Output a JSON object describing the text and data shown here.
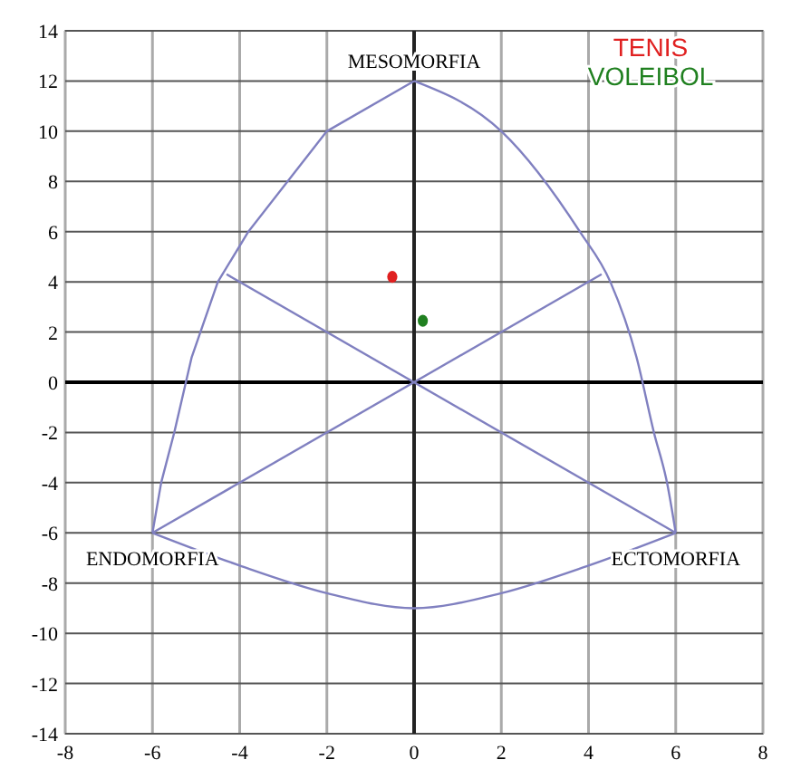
{
  "chart_data": {
    "type": "scatter",
    "xlim": [
      -8,
      8
    ],
    "ylim": [
      -14,
      14
    ],
    "xticks": [
      -8,
      -6,
      -4,
      -2,
      0,
      2,
      4,
      6,
      8
    ],
    "yticks": [
      -14,
      -12,
      -10,
      -8,
      -6,
      -4,
      -2,
      0,
      2,
      4,
      6,
      8,
      10,
      12,
      14
    ],
    "grid": true,
    "legend": "top right",
    "annotations": [
      {
        "text": "MESOMORFIA",
        "x": 0,
        "y": 12
      },
      {
        "text": "ENDOMORFIA",
        "x": -6,
        "y": -6
      },
      {
        "text": "ECTOMORFIA",
        "x": 6,
        "y": -6
      }
    ],
    "series": [
      {
        "type": "line",
        "color": "#8080c0",
        "x": [
          0,
          -2,
          -3.8,
          -4.5,
          -5.1,
          -5.5,
          -5.8,
          -6
        ],
        "values": [
          12,
          10,
          6,
          4,
          1,
          -2,
          -4,
          -6
        ]
      },
      {
        "type": "line",
        "color": "#8080c0",
        "x": [
          0,
          2,
          3.8,
          4.5,
          5.1,
          5.5,
          5.8,
          6
        ],
        "values": [
          12,
          10,
          6,
          4,
          1,
          -2,
          -4,
          -6
        ]
      },
      {
        "type": "line",
        "color": "#8080c0",
        "x": [
          -6,
          -4,
          -2,
          0,
          2,
          4,
          6
        ],
        "values": [
          -6,
          -7.3,
          -8.4,
          -9,
          -8.4,
          -7.3,
          -6
        ]
      },
      {
        "type": "line",
        "color": "#8080c0",
        "x": [
          -4.3,
          6
        ],
        "values": [
          4.3,
          -6
        ]
      },
      {
        "type": "line",
        "color": "#8080c0",
        "x": [
          4.3,
          -6
        ],
        "values": [
          4.3,
          -6
        ]
      },
      {
        "name": "TENIS",
        "color": "#e02020",
        "marker": "circle",
        "x": [
          -0.5
        ],
        "values": [
          4.2
        ]
      },
      {
        "name": "VOLEIBOL",
        "color": "#208020",
        "marker": "circle",
        "x": [
          0.2
        ],
        "values": [
          2.45
        ]
      }
    ]
  }
}
